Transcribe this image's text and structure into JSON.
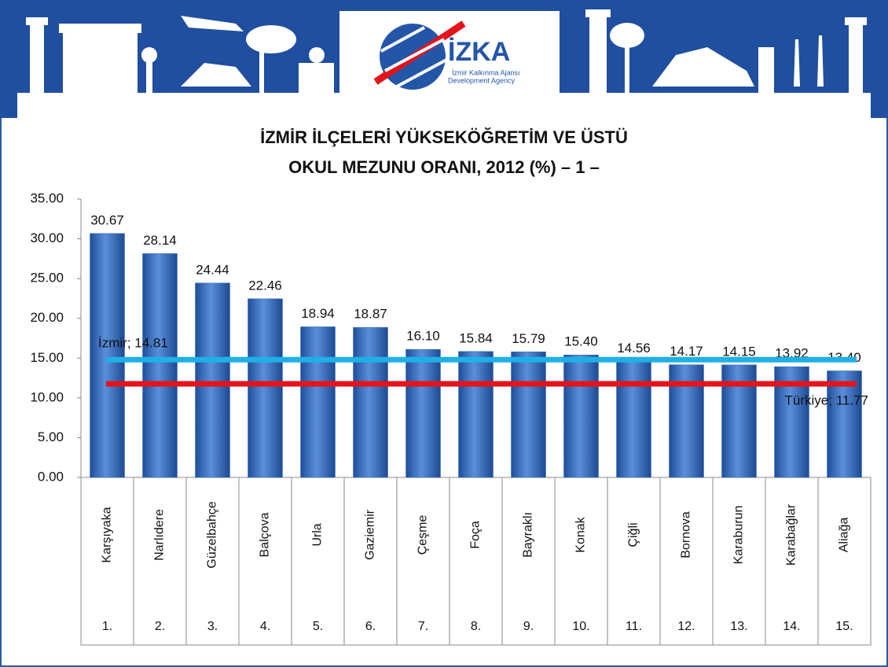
{
  "header": {
    "logo": "İZKA",
    "logo_line1": "İzmir Kalkınma Ajansı",
    "logo_line2": "Development Agency"
  },
  "chart_data": {
    "type": "bar",
    "title": "İZMİR İLÇELERİ YÜKSEKÖĞRETİM VE ÜSTÜ",
    "subtitle": "OKUL MEZUNU ORANI, 2012 (%) – 1 –",
    "categories": [
      "Karşıyaka",
      "Narlıdere",
      "Güzelbahçe",
      "Balçova",
      "Urla",
      "Gaziemir",
      "Çeşme",
      "Foça",
      "Bayraklı",
      "Konak",
      "Çiğli",
      "Bornova",
      "Karaburun",
      "Karabağlar",
      "Aliağa"
    ],
    "ranks": [
      "1.",
      "2.",
      "3.",
      "4.",
      "5.",
      "6.",
      "7.",
      "8.",
      "9.",
      "10.",
      "11.",
      "12.",
      "13.",
      "14.",
      "15."
    ],
    "values": [
      30.67,
      28.14,
      24.44,
      22.46,
      18.94,
      18.87,
      16.1,
      15.84,
      15.79,
      15.4,
      14.56,
      14.17,
      14.15,
      13.92,
      13.4
    ],
    "value_labels": [
      "30.67",
      "28.14",
      "24.44",
      "22.46",
      "18.94",
      "18.87",
      "16.10",
      "15.84",
      "15.79",
      "15.40",
      "14.56",
      "14.17",
      "14.15",
      "13.92",
      "13.40"
    ],
    "color": "#3a6fc0",
    "reference_lines": [
      {
        "label": "İzmir; 14.81",
        "value": 14.81,
        "color": "#1fb0e6"
      },
      {
        "label": "Türkiye; 11.77",
        "value": 11.77,
        "color": "#e3141b"
      }
    ],
    "ylim": [
      0,
      35
    ],
    "yticks": [
      {
        "value": 0,
        "label": "0.00"
      },
      {
        "value": 5,
        "label": "5.00"
      },
      {
        "value": 10,
        "label": "10.00"
      },
      {
        "value": 15,
        "label": "15.00"
      },
      {
        "value": 20,
        "label": "20.00"
      },
      {
        "value": 25,
        "label": "25.00"
      },
      {
        "value": 30,
        "label": "30.00"
      },
      {
        "value": 35,
        "label": "35.00"
      }
    ]
  }
}
